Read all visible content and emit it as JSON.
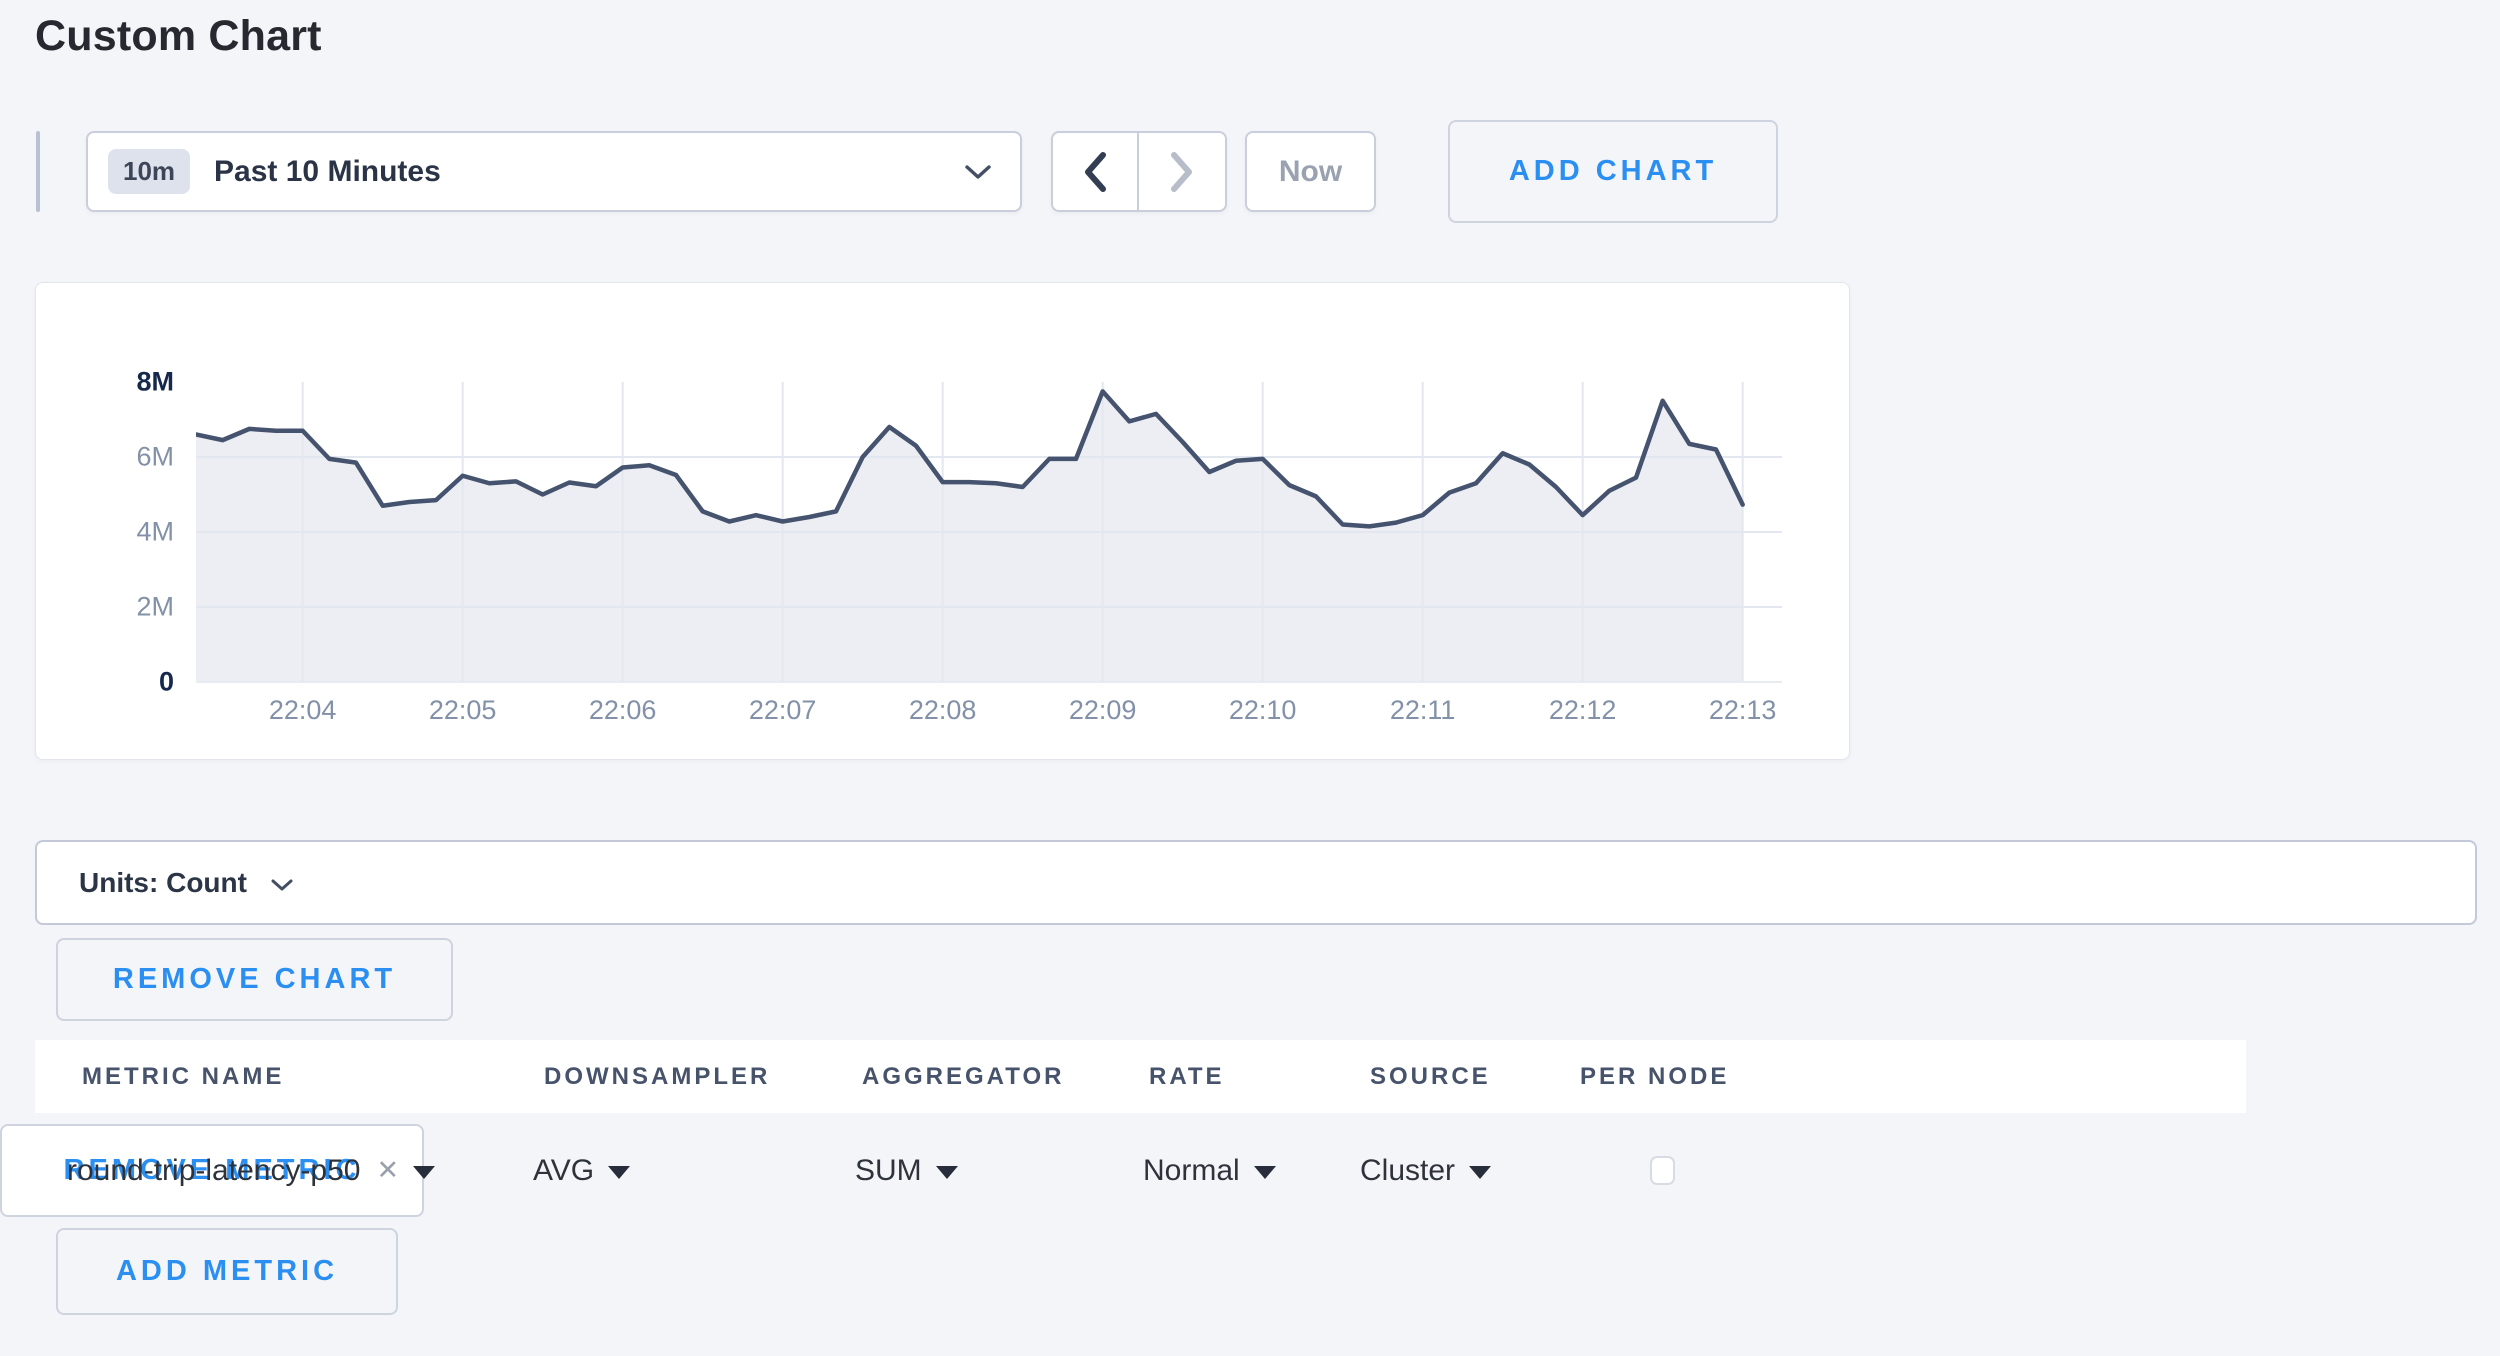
{
  "page": {
    "title": "Custom Chart"
  },
  "toolbar": {
    "time_window_badge": "10m",
    "time_window_label": "Past 10 Minutes",
    "now_label": "Now",
    "add_chart_label": "ADD CHART",
    "icons": [
      "chevron-down-icon",
      "chevron-left-icon",
      "chevron-right-icon"
    ]
  },
  "chart_data": {
    "type": "area",
    "title": "",
    "xlabel": "",
    "ylabel": "",
    "unit": "Count",
    "legend": "none",
    "grid": true,
    "ylim_millions": [
      0,
      8
    ],
    "y_tick_labels": [
      "8M",
      "6M",
      "4M",
      "2M",
      "0"
    ],
    "y_tick_values_millions": [
      8,
      6,
      4,
      2,
      0
    ],
    "y_grid_millions": [
      6,
      4,
      2
    ],
    "x_ticks": [
      "22:04",
      "22:05",
      "22:06",
      "22:07",
      "22:08",
      "22:09",
      "22:10",
      "22:11",
      "22:12",
      "22:13"
    ],
    "points_per_minute": 6,
    "first_tick_point_index": 4,
    "sample_interval_seconds": 10,
    "series": [
      {
        "name": "round-trip-latency-p50",
        "start_time": "22:03:20",
        "end_time": "22:13:00",
        "values_millions": [
          6.6,
          6.45,
          6.75,
          6.7,
          6.7,
          5.95,
          5.85,
          4.7,
          4.8,
          4.85,
          5.5,
          5.3,
          5.35,
          5.0,
          5.32,
          5.22,
          5.72,
          5.78,
          5.52,
          4.55,
          4.28,
          4.45,
          4.28,
          4.4,
          4.55,
          6.0,
          6.8,
          6.3,
          5.33,
          5.33,
          5.3,
          5.2,
          5.95,
          5.95,
          7.75,
          6.95,
          7.15,
          6.4,
          5.6,
          5.9,
          5.95,
          5.25,
          4.95,
          4.2,
          4.15,
          4.25,
          4.45,
          5.05,
          5.3,
          6.1,
          5.8,
          5.2,
          4.45,
          5.1,
          5.45,
          7.5,
          6.35,
          6.2,
          4.73
        ]
      }
    ]
  },
  "units_bar": {
    "label": "Units: Count"
  },
  "chart_actions": {
    "remove_chart_label": "REMOVE CHART"
  },
  "metrics_table": {
    "columns": [
      "METRIC NAME",
      "DOWNSAMPLER",
      "AGGREGATOR",
      "RATE",
      "SOURCE",
      "PER NODE"
    ],
    "rows": [
      {
        "metric_name": "round-trip-latency-p50",
        "downsampler": "AVG",
        "aggregator": "SUM",
        "rate": "Normal",
        "source": "Cluster",
        "per_node_checked": false,
        "remove_label": "REMOVE METRIC"
      }
    ],
    "add_metric_label": "ADD METRIC"
  },
  "colors": {
    "page_background": "#f4f5f9",
    "accent_blue": "#2b8ff2",
    "series_line": "#46536e",
    "series_fill": "#eceef4",
    "gridline": "#e3e7ef",
    "axis_label": "#8291a8",
    "axis_label_major": "#16294d",
    "control_border": "#c8cedb",
    "disabled_text": "#9aa2b1"
  }
}
